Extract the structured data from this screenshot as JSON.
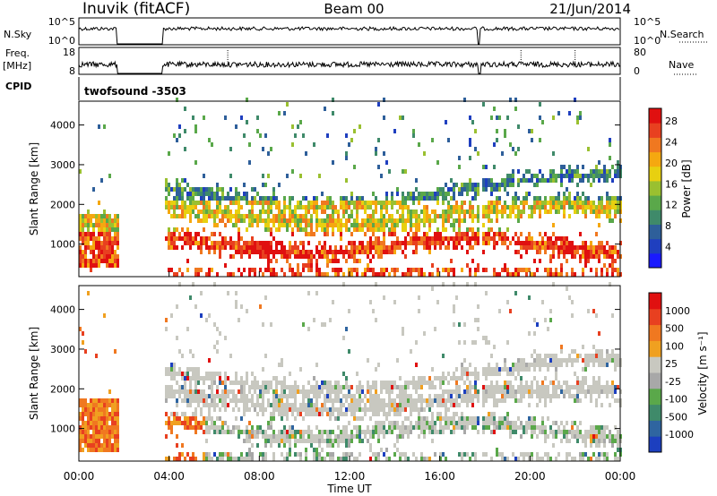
{
  "header": {
    "station": "Inuvik (fitACF)",
    "beam": "Beam 00",
    "date": "21/Jun/2014"
  },
  "strip_labels": {
    "nsky": "N.Sky",
    "nsearch": "N.Search",
    "freq_top": "Freq.",
    "freq_unit": "[MHz]",
    "nave": "Nave",
    "cpid": "CPID",
    "cpid_value": "twofsound -3503"
  },
  "colors": {
    "power": [
      "#1a1aff",
      "#1f3fbf",
      "#2e5f9a",
      "#3f8a6a",
      "#5aa84a",
      "#9ac030",
      "#e8d010",
      "#f5a810",
      "#f07820",
      "#e84020",
      "#e01010"
    ],
    "velocity": [
      "#1c3fbf",
      "#2f65a0",
      "#3f8a6a",
      "#5aa84a",
      "#a8a8a8",
      "#c8c8c0",
      "#f0a020",
      "#f07820",
      "#e84020",
      "#e01010"
    ]
  },
  "chart_data": [
    {
      "type": "line",
      "title": "N.Sky / N.Search",
      "yticks_left": [
        "10^5",
        "10^0"
      ],
      "yticks_right": [
        "10^5",
        "10^0"
      ],
      "note": ""
    },
    {
      "type": "line",
      "title": "Freq. [MHz] / Nave",
      "yticks_left": [
        "18",
        "8"
      ],
      "yticks_right": [
        "80",
        "0"
      ],
      "freq_mhz": 11,
      "data_gaps_hours": [
        [
          1.7,
          3.7
        ],
        [
          17.7,
          17.8
        ]
      ]
    },
    {
      "type": "heatmap",
      "quantity": "Power",
      "ylabel": "Slant Range [km]",
      "ylim": [
        180,
        4600
      ],
      "yticks": [
        "1000",
        "2000",
        "3000",
        "4000"
      ],
      "colorbar_label": "Power [dB]",
      "colorbar_ticks": [
        "4",
        "8",
        "12",
        "16",
        "20",
        "24",
        "28"
      ]
    },
    {
      "type": "heatmap",
      "quantity": "Velocity",
      "ylabel": "Slant Range [km]",
      "ylim": [
        180,
        4600
      ],
      "yticks": [
        "1000",
        "2000",
        "3000",
        "4000"
      ],
      "xlabel": "Time UT",
      "xticks": [
        "00:00",
        "04:00",
        "08:00",
        "12:00",
        "16:00",
        "20:00",
        "00:00"
      ],
      "colorbar_label": "Velocity [m s⁻¹]",
      "colorbar_ticks": [
        "1000",
        "500",
        "100",
        "25",
        "-25",
        "-100",
        "-500",
        "-1000"
      ]
    }
  ]
}
